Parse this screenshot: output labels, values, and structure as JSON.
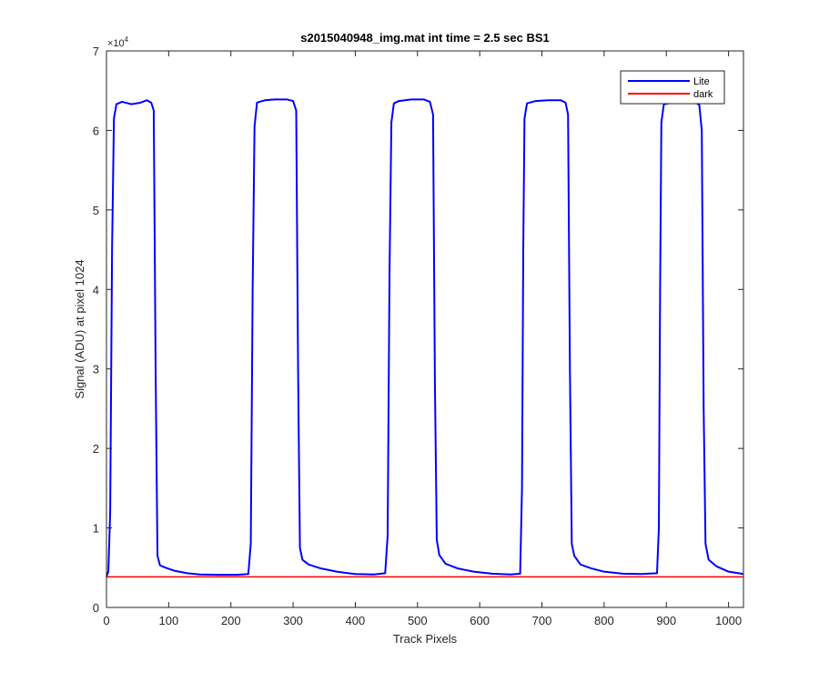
{
  "chart_data": {
    "type": "line",
    "title": "s2015040948_img.mat int time = 2.5 sec   BS1",
    "xlabel": "Track Pixels",
    "ylabel": "Signal (ADU) at pixel 1024",
    "xlim": [
      0,
      1024
    ],
    "ylim": [
      0,
      70000
    ],
    "xticks": [
      0,
      100,
      200,
      300,
      400,
      500,
      600,
      700,
      800,
      900,
      1000
    ],
    "yticks": [
      0,
      10000,
      20000,
      30000,
      40000,
      50000,
      60000,
      70000
    ],
    "ytick_labels": [
      "0",
      "1",
      "2",
      "3",
      "4",
      "5",
      "6",
      "7"
    ],
    "y_exponent_label": "×10",
    "y_exponent_power": "4",
    "grid": false,
    "legend_position": "top-right",
    "series": [
      {
        "name": "Lite",
        "color": "#0000ff",
        "x": [
          0,
          3,
          6,
          9,
          12,
          16,
          25,
          40,
          55,
          65,
          72,
          76,
          79,
          82,
          86,
          95,
          110,
          130,
          150,
          180,
          210,
          228,
          232,
          235,
          238,
          242,
          255,
          270,
          290,
          300,
          305,
          308,
          311,
          315,
          325,
          345,
          370,
          400,
          430,
          448,
          452,
          455,
          458,
          462,
          470,
          490,
          510,
          520,
          525,
          528,
          531,
          535,
          545,
          565,
          590,
          620,
          650,
          665,
          668,
          670,
          672,
          676,
          690,
          710,
          730,
          738,
          742,
          745,
          748,
          752,
          762,
          780,
          800,
          830,
          860,
          885,
          888,
          890,
          892,
          896,
          910,
          930,
          945,
          953,
          957,
          960,
          963,
          968,
          980,
          1000,
          1024
        ],
        "y": [
          3900,
          4500,
          12000,
          45000,
          61500,
          63300,
          63600,
          63300,
          63500,
          63800,
          63500,
          62500,
          30000,
          6500,
          5300,
          5000,
          4600,
          4300,
          4150,
          4100,
          4100,
          4200,
          8000,
          40000,
          60500,
          63500,
          63800,
          63900,
          63900,
          63700,
          62500,
          30000,
          7500,
          6000,
          5400,
          4900,
          4500,
          4200,
          4150,
          4300,
          9000,
          42000,
          61000,
          63400,
          63700,
          63900,
          63900,
          63600,
          62000,
          28000,
          8500,
          6600,
          5500,
          4900,
          4500,
          4250,
          4150,
          4250,
          15000,
          45000,
          61500,
          63400,
          63700,
          63800,
          63800,
          63500,
          62000,
          30000,
          8000,
          6500,
          5400,
          4900,
          4500,
          4250,
          4200,
          4300,
          10000,
          40000,
          61000,
          63300,
          63500,
          63600,
          63600,
          63200,
          60000,
          25000,
          8000,
          6000,
          5200,
          4500,
          4200
        ]
      },
      {
        "name": "dark",
        "color": "#ff0000",
        "x": [
          0,
          1024
        ],
        "y": [
          3850,
          3850
        ]
      }
    ]
  }
}
